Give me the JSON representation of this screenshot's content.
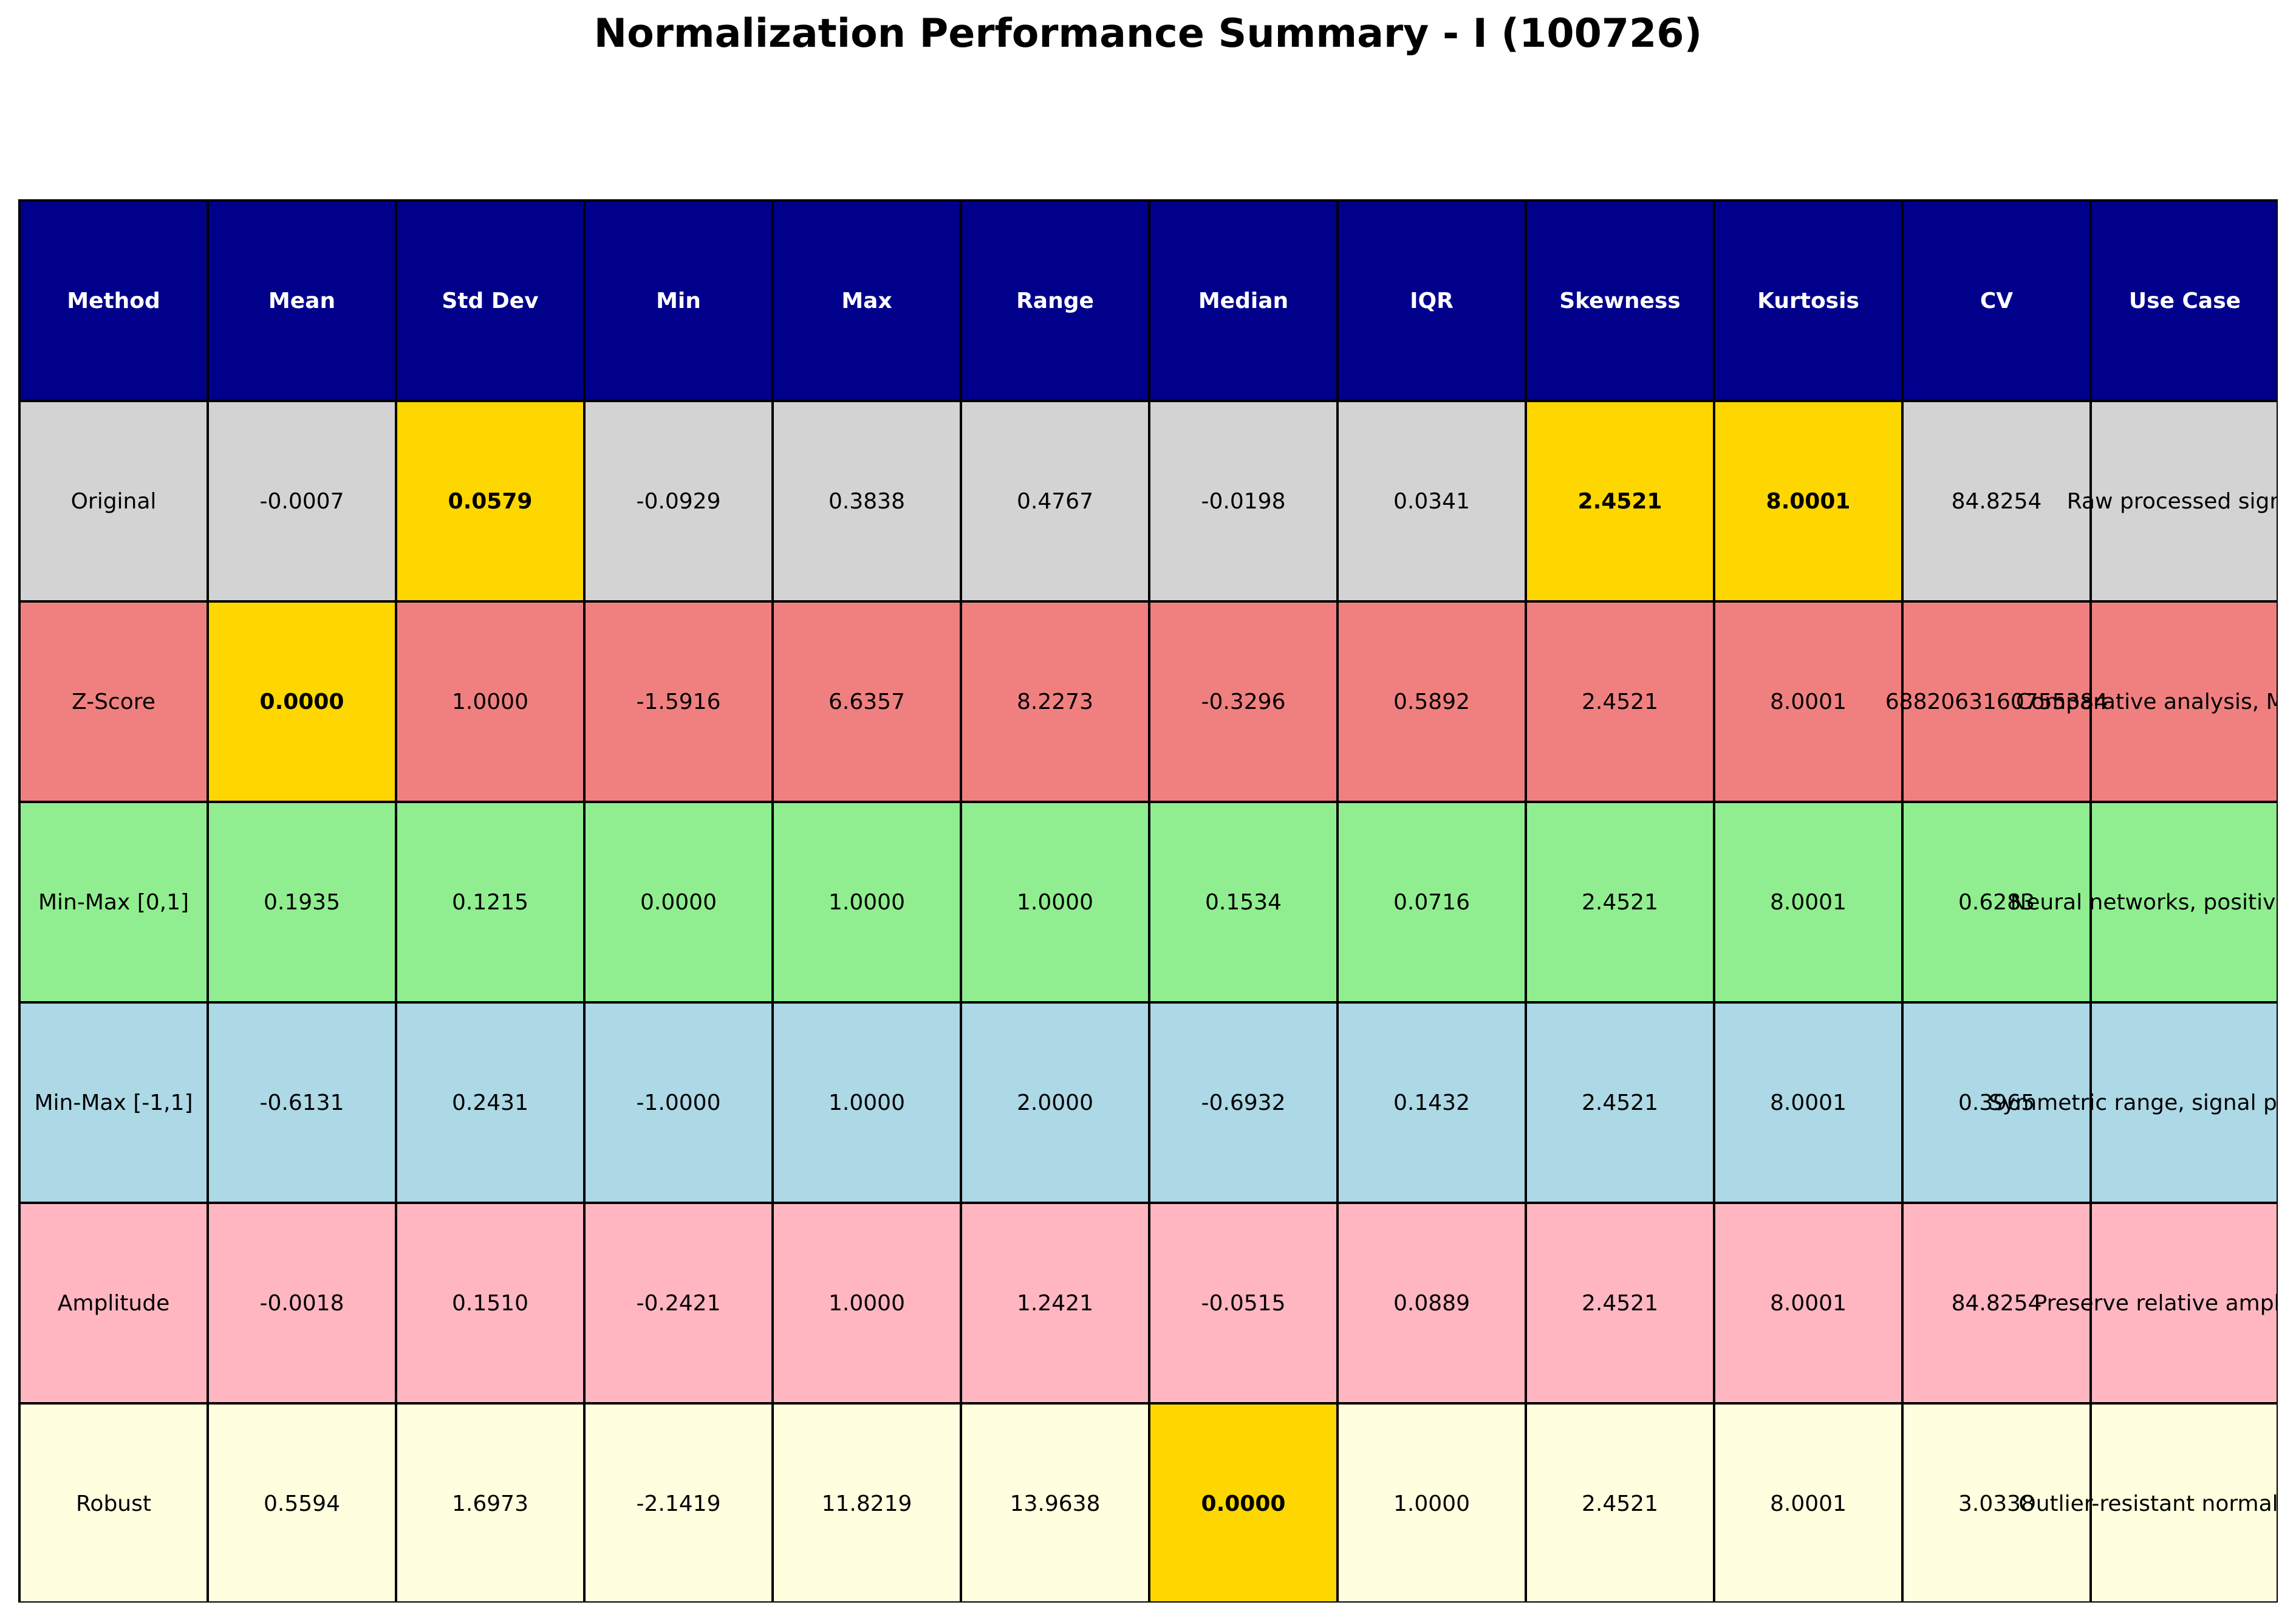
{
  "chart_data": {
    "type": "table",
    "title": "Normalization Performance Summary - I (100726)",
    "columns": [
      "Method",
      "Mean",
      "Std Dev",
      "Min",
      "Max",
      "Range",
      "Median",
      "IQR",
      "Skewness",
      "Kurtosis",
      "CV",
      "Use Case"
    ],
    "rows": [
      {
        "key": "original",
        "color": "#d3d3d3",
        "cells": [
          "Original",
          "-0.0007",
          "0.0579",
          "-0.0929",
          "0.3838",
          "0.4767",
          "-0.0198",
          "0.0341",
          "2.4521",
          "8.0001",
          "84.8254",
          "Raw processed signal"
        ],
        "highlight": [
          2,
          8,
          9
        ]
      },
      {
        "key": "zscore",
        "color": "#f08080",
        "cells": [
          "Z-Score",
          "0.0000",
          "1.0000",
          "-1.5916",
          "6.6357",
          "8.2273",
          "-0.3296",
          "0.5892",
          "2.4521",
          "8.0001",
          "6882063160755384",
          "Comparative analysis, ML prep"
        ],
        "highlight": [
          1
        ]
      },
      {
        "key": "minmax01",
        "color": "#90ee90",
        "cells": [
          "Min-Max [0,1]",
          "0.1935",
          "0.1215",
          "0.0000",
          "1.0000",
          "1.0000",
          "0.1534",
          "0.0716",
          "2.4521",
          "8.0001",
          "0.6283",
          "Neural networks, positive range"
        ],
        "highlight": []
      },
      {
        "key": "minmax11",
        "color": "#add8e6",
        "cells": [
          "Min-Max [-1,1]",
          "-0.6131",
          "0.2431",
          "-1.0000",
          "1.0000",
          "2.0000",
          "-0.6932",
          "0.1432",
          "2.4521",
          "8.0001",
          "0.3965",
          "Symmetric range, signal processing"
        ],
        "highlight": []
      },
      {
        "key": "amplitude",
        "color": "#ffb6c1",
        "cells": [
          "Amplitude",
          "-0.0018",
          "0.1510",
          "-0.2421",
          "1.0000",
          "1.2421",
          "-0.0515",
          "0.0889",
          "2.4521",
          "8.0001",
          "84.8254",
          "Preserve relative amplitude"
        ],
        "highlight": []
      },
      {
        "key": "robust",
        "color": "#ffffe0",
        "cells": [
          "Robust",
          "0.5594",
          "1.6973",
          "-2.1419",
          "11.8219",
          "13.9638",
          "0.0000",
          "1.0000",
          "2.4521",
          "8.0001",
          "3.0338",
          "Outlier-resistant normalization"
        ],
        "highlight": [
          6
        ]
      }
    ],
    "header_color": "#00008b",
    "highlight_color": "#ffd700"
  }
}
